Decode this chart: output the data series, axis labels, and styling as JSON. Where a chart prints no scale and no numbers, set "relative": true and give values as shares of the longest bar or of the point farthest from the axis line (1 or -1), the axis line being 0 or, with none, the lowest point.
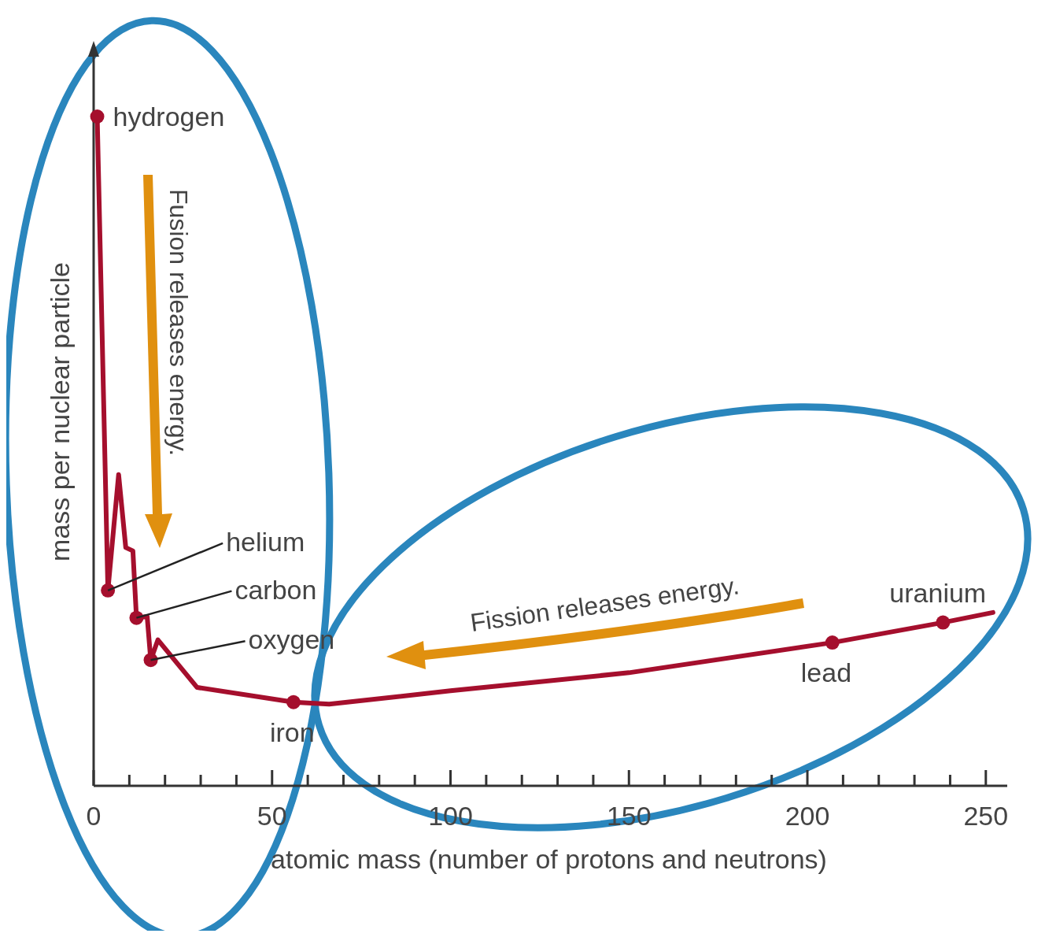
{
  "chart_data": {
    "type": "line",
    "relative": true,
    "xlabel": "atomic mass (number of protons and neutrons)",
    "ylabel": "mass per nuclear particle",
    "xlim": [
      0,
      256
    ],
    "xticks": [
      0,
      {
        "value": 10,
        "label": null
      },
      {
        "value": 20,
        "label": null
      },
      {
        "value": 30,
        "label": null
      },
      {
        "value": 40,
        "label": null
      },
      50,
      {
        "value": 60,
        "label": null
      },
      {
        "value": 70,
        "label": null
      },
      {
        "value": 80,
        "label": null
      },
      {
        "value": 90,
        "label": null
      },
      100,
      {
        "value": 110,
        "label": null
      },
      {
        "value": 120,
        "label": null
      },
      {
        "value": 130,
        "label": null
      },
      {
        "value": 140,
        "label": null
      },
      150,
      {
        "value": 160,
        "label": null
      },
      {
        "value": 170,
        "label": null
      },
      {
        "value": 180,
        "label": null
      },
      {
        "value": 190,
        "label": null
      },
      200,
      {
        "value": 210,
        "label": null
      },
      {
        "value": 220,
        "label": null
      },
      {
        "value": 230,
        "label": null
      },
      {
        "value": 240,
        "label": null
      },
      250
    ],
    "grid": false,
    "series": [
      {
        "color": "#a50f2d",
        "marker": "none",
        "x": [
          1,
          4,
          7,
          9,
          11,
          12,
          15,
          16,
          18,
          29,
          56,
          66,
          100,
          150,
          207,
          238,
          252
        ],
        "values": [
          1,
          0.292,
          0.465,
          0.356,
          0.351,
          0.251,
          0.253,
          0.188,
          0.218,
          0.147,
          0.125,
          0.122,
          0.142,
          0.169,
          0.214,
          0.244,
          0.259
        ]
      },
      {
        "type": "scatter",
        "color": "#a50f2d",
        "marker": "circle",
        "x": [
          1,
          4,
          12,
          16,
          56,
          207,
          238
        ],
        "values": [
          1,
          0.292,
          0.251,
          0.188,
          0.125,
          0.214,
          0.244
        ]
      }
    ],
    "annotations": [
      {
        "text": "hydrogen",
        "x": 1,
        "y": 1
      },
      {
        "text": "helium",
        "x": 4,
        "y": 0.292
      },
      {
        "text": "carbon",
        "x": 12,
        "y": 0.251
      },
      {
        "text": "oxygen",
        "x": 16,
        "y": 0.188
      },
      {
        "text": "iron",
        "x": 56,
        "y": 0.125
      },
      {
        "text": "lead",
        "x": 207,
        "y": 0.214
      },
      {
        "text": "uranium",
        "x": 238,
        "y": 0.244
      },
      "Fusion releases energy.",
      "Fission releases energy."
    ]
  }
}
